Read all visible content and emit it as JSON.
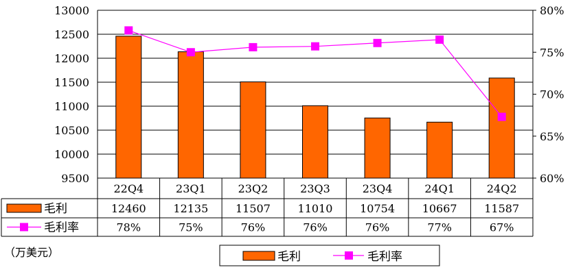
{
  "chart_data": {
    "type": "bar",
    "categories": [
      "22Q4",
      "23Q1",
      "23Q2",
      "23Q3",
      "23Q4",
      "24Q1",
      "24Q2"
    ],
    "series": [
      {
        "name": "毛利",
        "type": "bar",
        "axis": "left",
        "color": "#ff6600",
        "values": [
          12460,
          12135,
          11507,
          11010,
          10754,
          10667,
          11587
        ],
        "table_labels": [
          "12460",
          "12135",
          "11507",
          "11010",
          "10754",
          "10667",
          "11587"
        ]
      },
      {
        "name": "毛利率",
        "type": "line",
        "axis": "right",
        "color": "#ff00ff",
        "values": [
          77.6,
          75.0,
          75.6,
          75.7,
          76.1,
          76.5,
          67.3
        ],
        "table_labels": [
          "78%",
          "75%",
          "76%",
          "76%",
          "76%",
          "77%",
          "67%"
        ]
      }
    ],
    "left_axis": {
      "min": 9500,
      "max": 13000,
      "ticks": [
        "13000",
        "12500",
        "12000",
        "11500",
        "11000",
        "10500",
        "10000",
        "9500"
      ]
    },
    "right_axis": {
      "min": 60,
      "max": 80,
      "ticks": [
        "80%",
        "75%",
        "70%",
        "65%",
        "60%"
      ]
    },
    "unit_label": "（万美元）",
    "grid": "horizontal",
    "legend": "bottom-center",
    "data_table": true
  }
}
